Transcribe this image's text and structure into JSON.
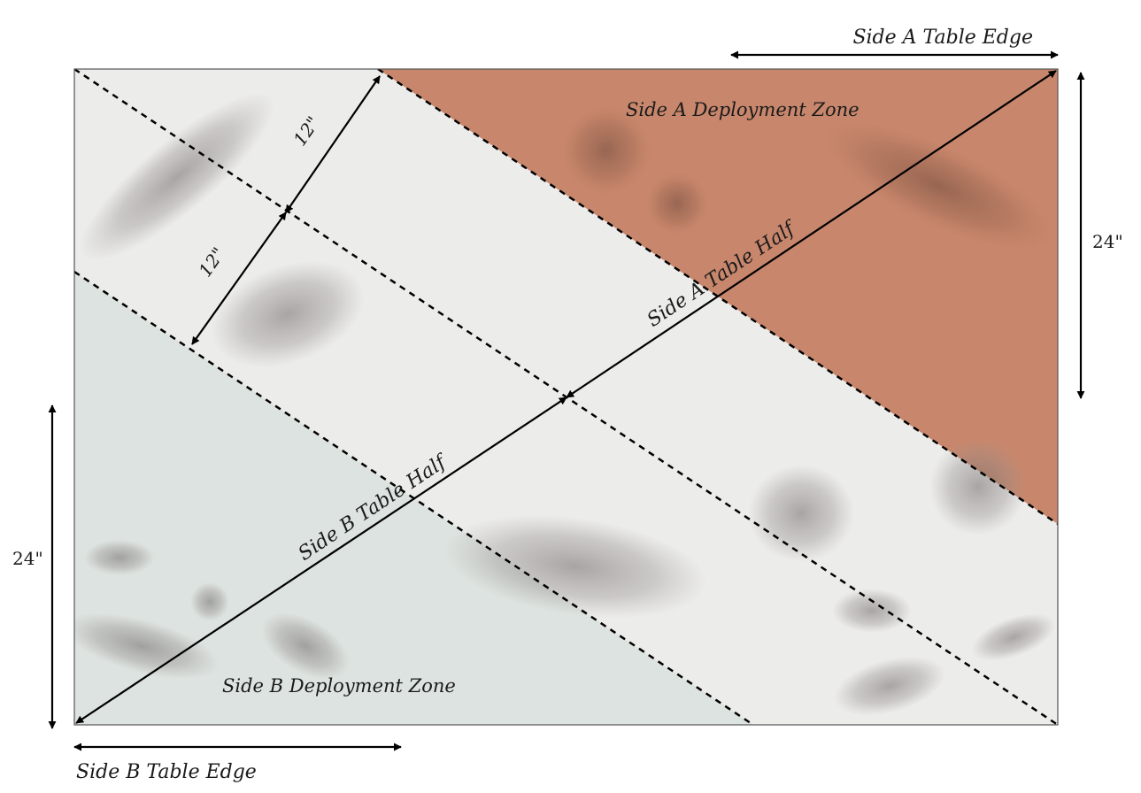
{
  "labels": {
    "side_a_table_edge": "Side A Table Edge",
    "side_b_table_edge": "Side B Table Edge",
    "side_a_deployment_zone": "Side A Deployment Zone",
    "side_b_deployment_zone": "Side B Deployment Zone",
    "side_a_table_half": "Side A Table Half",
    "side_b_table_half": "Side B Table Half",
    "dist_upper": "12\"",
    "dist_lower": "12\"",
    "height_right": "24\"",
    "height_left": "24\""
  },
  "colors": {
    "side_a_zone": "#c8876c",
    "side_b_zone": "#dde3e0",
    "neutral_ground": "#ececeb",
    "rock": "#8f8a88"
  }
}
